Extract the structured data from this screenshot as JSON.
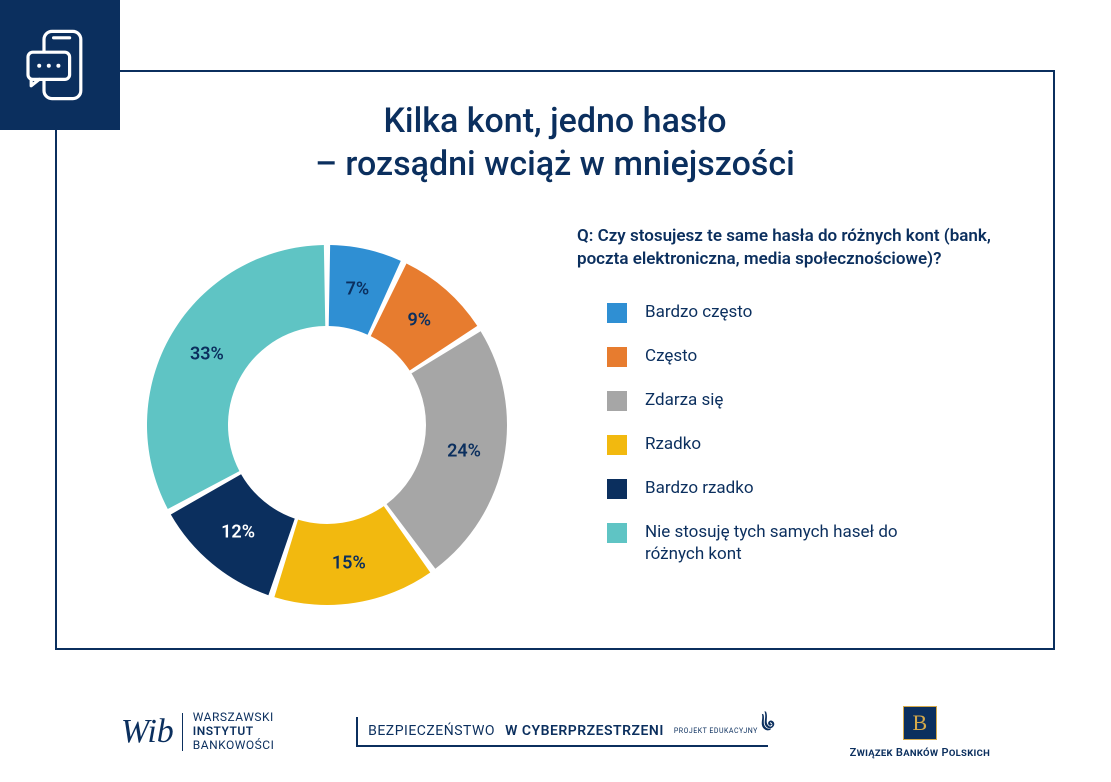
{
  "title_line1": "Kilka kont, jedno hasło",
  "title_line2": "– rozsądni wciąż w mniejszości",
  "title_fontsize": 34,
  "question": "Q: Czy stosujesz te same hasła do różnych kont (bank, poczta elektroniczna, media społecznościowe)?",
  "question_fontsize": 17,
  "legend_fontsize": 17,
  "label_fontsize": 18,
  "chart": {
    "type": "donut",
    "inner_radius_pct": 55,
    "outer_radius_pct": 100,
    "gap_deg": 2,
    "start_angle_deg": -90,
    "background_color": "#ffffff",
    "slices": [
      {
        "label": "Bardzo często",
        "value": 7,
        "color": "#2f8fd3",
        "pct_text": "7%"
      },
      {
        "label": "Często",
        "value": 9,
        "color": "#e77c2f",
        "pct_text": "9%"
      },
      {
        "label": "Zdarza się",
        "value": 24,
        "color": "#a6a6a6",
        "pct_text": "24%"
      },
      {
        "label": "Rzadko",
        "value": 15,
        "color": "#f2b90f",
        "pct_text": "15%"
      },
      {
        "label": "Bardzo rzadko",
        "value": 12,
        "color": "#0b2f5e",
        "pct_text": "12%"
      },
      {
        "label": "Nie stosuję tych samych haseł do różnych kont",
        "value": 33,
        "color": "#5fc4c4",
        "pct_text": "33%"
      }
    ]
  },
  "footer": {
    "wib_line1": "WARSZAWSKI",
    "wib_line2": "INSTYTUT",
    "wib_line3": "BANKOWOŚCI",
    "cyber_line1": "BEZPIECZEŃSTWO",
    "cyber_line2": "W CYBERPRZESTRZENI",
    "cyber_sub": "PROJEKT EDUKACYJNY",
    "zbp": "Związek Banków Polskich"
  },
  "colors": {
    "brand": "#0b2f5e",
    "frame": "#0b2f5e"
  }
}
